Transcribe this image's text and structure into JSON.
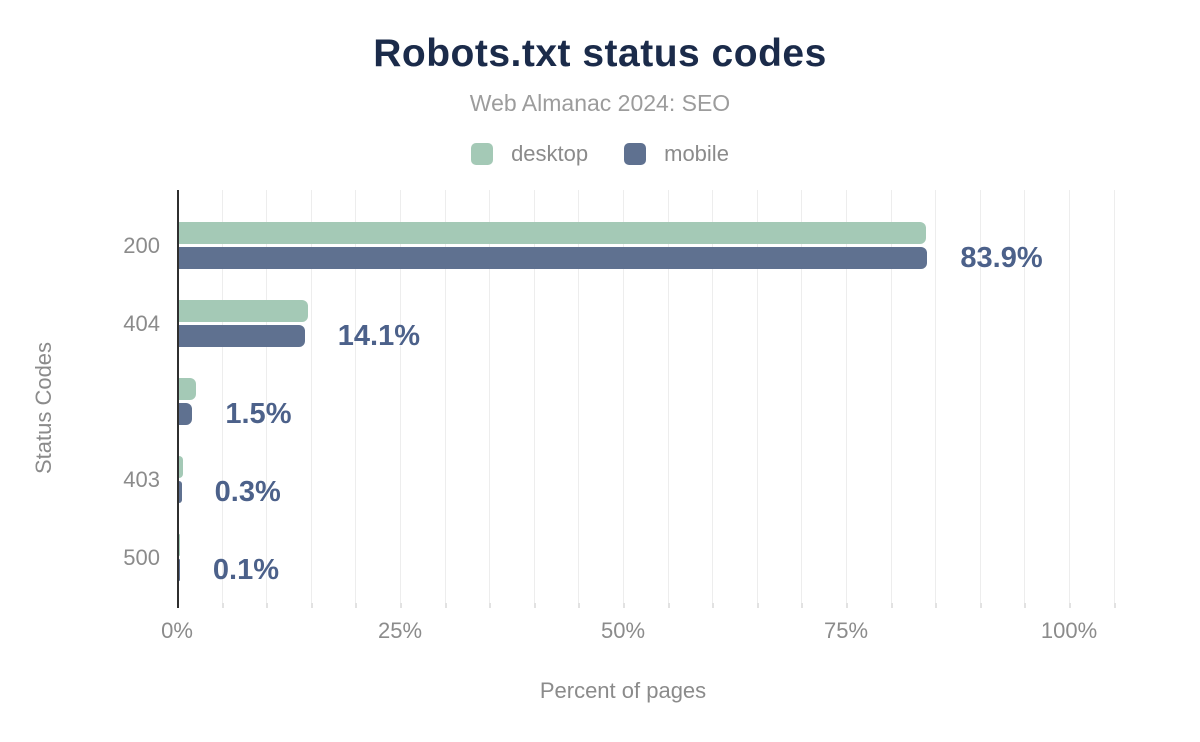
{
  "chart": {
    "title": "Robots.txt status codes",
    "subtitle": "Web Almanac 2024: SEO",
    "xlabel": "Percent of pages",
    "ylabel": "Status Codes"
  },
  "colors": {
    "title": "#1b2b4a",
    "muted_text": "#8b8b8b",
    "subtitle_text": "#9c9c9c",
    "value_label": "#4c618a",
    "desktop": "#a4c9b6",
    "mobile": "#5f7190",
    "gridline": "#ededed",
    "axis_line": "#2f2f2f"
  },
  "chart_data": {
    "type": "bar",
    "orientation": "horizontal",
    "title": "Robots.txt status codes",
    "subtitle": "Web Almanac 2024: SEO",
    "xlabel": "Percent of pages",
    "ylabel": "Status Codes",
    "categories": [
      "200",
      "404",
      "",
      "403",
      "500"
    ],
    "series": [
      {
        "name": "desktop",
        "color": "#a4c9b6",
        "values": [
          83.7,
          14.5,
          1.9,
          0.4,
          0.1
        ]
      },
      {
        "name": "mobile",
        "color": "#5f7190",
        "values": [
          83.9,
          14.1,
          1.5,
          0.3,
          0.1
        ]
      }
    ],
    "value_labels": [
      "83.9%",
      "14.1%",
      "1.5%",
      "0.3%",
      "0.1%"
    ],
    "value_labels_series": "mobile",
    "x_ticks": [
      {
        "value": 0,
        "label": "0%"
      },
      {
        "value": 25,
        "label": "25%"
      },
      {
        "value": 50,
        "label": "50%"
      },
      {
        "value": 75,
        "label": "75%"
      },
      {
        "value": 100,
        "label": "100%"
      }
    ],
    "xlim": [
      0,
      105
    ],
    "grid_step": 5,
    "grid": true,
    "legend_position": "top"
  }
}
